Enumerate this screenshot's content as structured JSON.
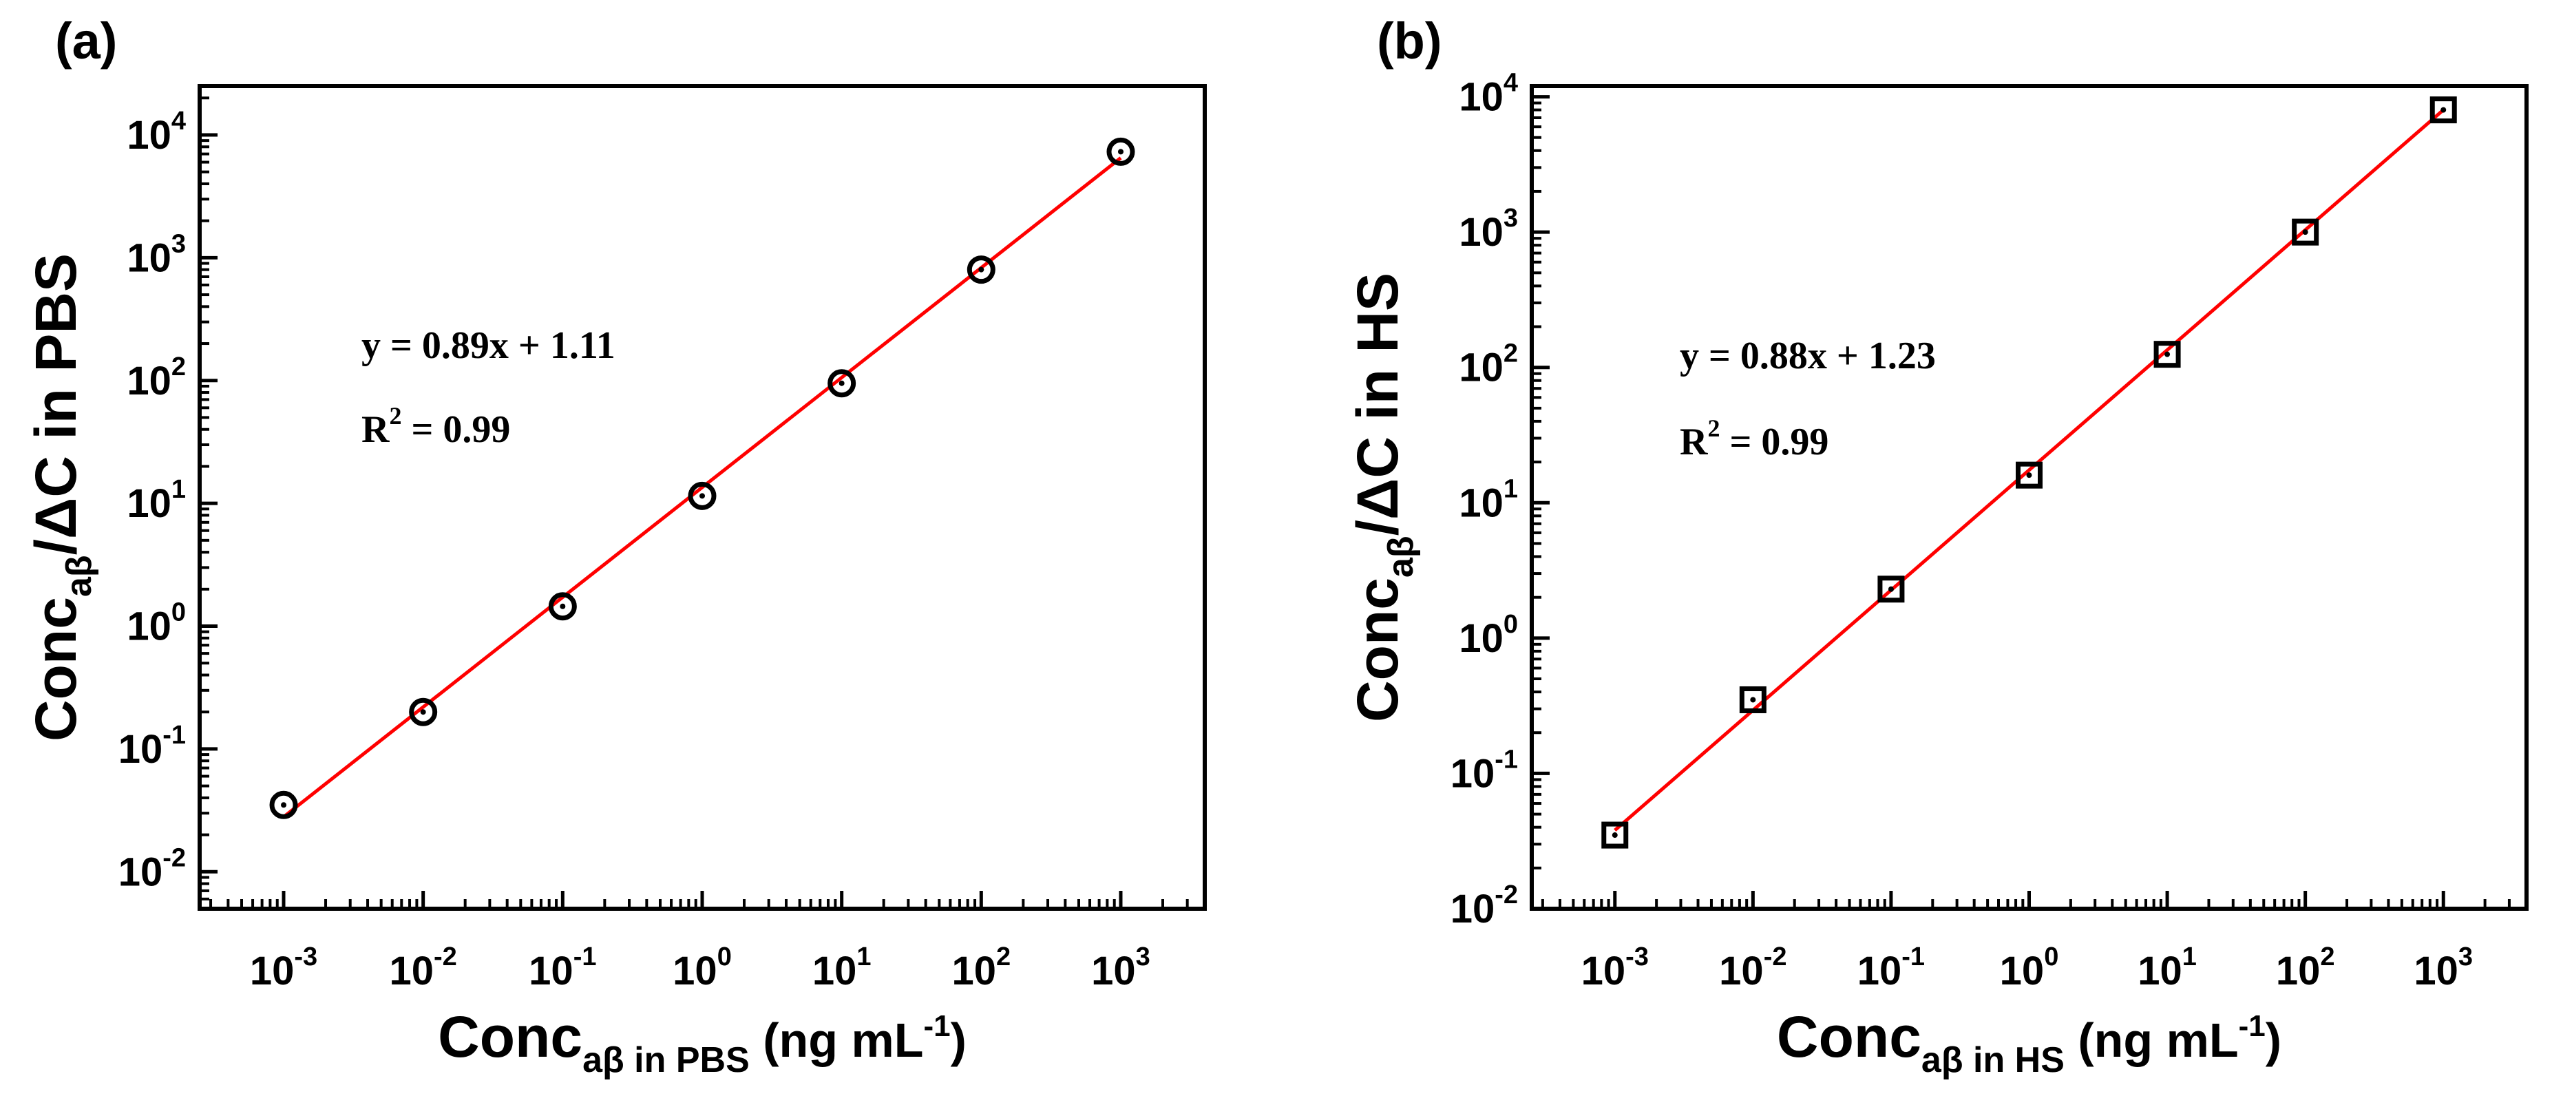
{
  "chart_data": [
    {
      "type": "scatter",
      "panel_label": "(a)",
      "x": [
        "10^-3",
        "10^-2",
        "10^-1",
        "10^0",
        "10^1",
        "10^2",
        "10^3"
      ],
      "x_values": [
        0.001,
        0.01,
        0.1,
        1,
        10,
        100,
        1000
      ],
      "y_values": [
        0.035,
        0.2,
        1.45,
        11.5,
        95,
        800,
        7300
      ],
      "marker": "circle-dot",
      "fit": {
        "x": [
          0.001,
          1000
        ],
        "y": [
          0.028,
          6500
        ],
        "color": "#ff0000"
      },
      "xscale": "log",
      "yscale": "log",
      "xlim": [
        0.00025,
        4000
      ],
      "ylim": [
        0.005,
        25000
      ],
      "xticks": [
        {
          "b": "10",
          "e": "-3"
        },
        {
          "b": "10",
          "e": "-2"
        },
        {
          "b": "10",
          "e": "-1"
        },
        {
          "b": "10",
          "e": "0"
        },
        {
          "b": "10",
          "e": "1"
        },
        {
          "b": "10",
          "e": "2"
        },
        {
          "b": "10",
          "e": "3"
        }
      ],
      "yticks": [
        {
          "b": "10",
          "e": "-2"
        },
        {
          "b": "10",
          "e": "-1"
        },
        {
          "b": "10",
          "e": "0"
        },
        {
          "b": "10",
          "e": "1"
        },
        {
          "b": "10",
          "e": "2"
        },
        {
          "b": "10",
          "e": "3"
        },
        {
          "b": "10",
          "e": "4"
        }
      ],
      "xlabel": {
        "main": "Conc",
        "sub": "aβ in PBS",
        "tail": " (ng mL",
        "sup": "-1",
        "end": ")"
      },
      "ylabel": {
        "main": "Conc",
        "sub": "aβ",
        "tail": "/ΔC in PBS"
      },
      "annotations": {
        "equation": "y = 0.89x + 1.11",
        "r2_base": "R",
        "r2_sup": "2",
        "r2_tail": " = 0.99"
      }
    },
    {
      "type": "scatter",
      "panel_label": "(b)",
      "x": [
        "10^-3",
        "10^-2",
        "10^-1",
        "10^0",
        "10^1",
        "10^2",
        "10^3"
      ],
      "x_values": [
        0.001,
        0.01,
        0.1,
        1,
        10,
        100,
        1000
      ],
      "y_values": [
        0.035,
        0.35,
        2.3,
        16,
        125,
        1000,
        8000
      ],
      "marker": "square-dot",
      "fit": {
        "x": [
          0.001,
          1000
        ],
        "y": [
          0.038,
          8000
        ],
        "color": "#ff0000"
      },
      "xscale": "log",
      "yscale": "log",
      "xlim": [
        0.00025,
        4000
      ],
      "ylim": [
        0.01,
        12000
      ],
      "xticks": [
        {
          "b": "10",
          "e": "-3"
        },
        {
          "b": "10",
          "e": "-2"
        },
        {
          "b": "10",
          "e": "-1"
        },
        {
          "b": "10",
          "e": "0"
        },
        {
          "b": "10",
          "e": "1"
        },
        {
          "b": "10",
          "e": "2"
        },
        {
          "b": "10",
          "e": "3"
        }
      ],
      "yticks": [
        {
          "b": "10",
          "e": "-2"
        },
        {
          "b": "10",
          "e": "-1"
        },
        {
          "b": "10",
          "e": "0"
        },
        {
          "b": "10",
          "e": "1"
        },
        {
          "b": "10",
          "e": "2"
        },
        {
          "b": "10",
          "e": "3"
        },
        {
          "b": "10",
          "e": "4"
        }
      ],
      "xlabel": {
        "main": "Conc",
        "sub": "aβ in HS",
        "tail": " (ng mL",
        "sup": "-1",
        "end": ")"
      },
      "ylabel": {
        "main": "Conc",
        "sub": "aβ",
        "tail": "/ΔC in HS"
      },
      "annotations": {
        "equation": "y = 0.88x + 1.23",
        "r2_base": "R",
        "r2_sup": "2",
        "r2_tail": " = 0.99"
      }
    }
  ]
}
